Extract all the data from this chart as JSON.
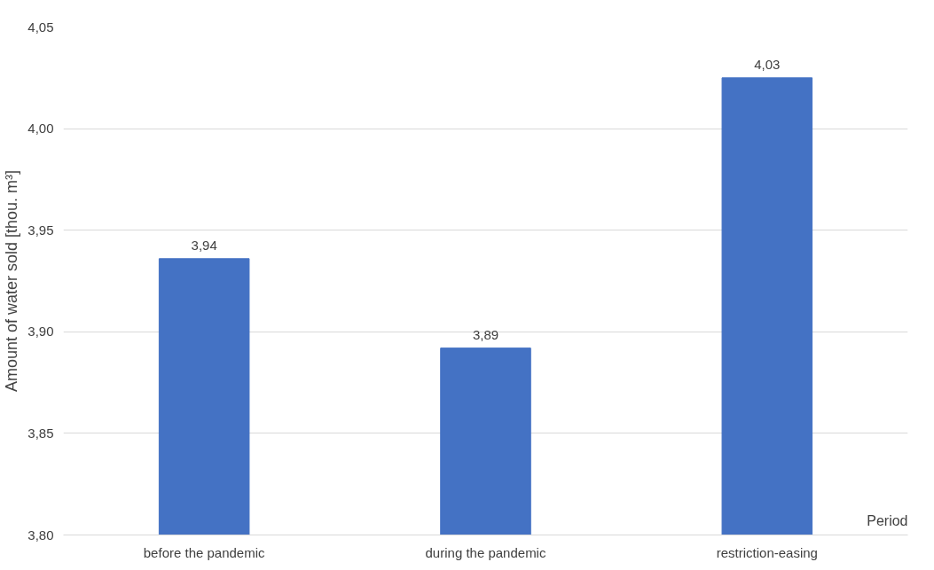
{
  "chart_data": {
    "type": "bar",
    "categories": [
      "before the pandemic",
      "during the pandemic",
      "restriction-easing"
    ],
    "values": [
      3.936,
      3.892,
      4.025
    ],
    "value_labels": [
      "3,94",
      "3,89",
      "4,03"
    ],
    "color": "#4472c4",
    "xlabel": "Period",
    "ylabel": "Amount of water sold [thou. m³]",
    "ylim": [
      3.8,
      4.05
    ],
    "yticks": [
      {
        "value": 3.8,
        "label": "3,80"
      },
      {
        "value": 3.85,
        "label": "3,85"
      },
      {
        "value": 3.9,
        "label": "3,90"
      },
      {
        "value": 3.95,
        "label": "3,95"
      },
      {
        "value": 4.0,
        "label": "4,00"
      },
      {
        "value": 4.05,
        "label": "4,05"
      }
    ],
    "grid": "y"
  }
}
